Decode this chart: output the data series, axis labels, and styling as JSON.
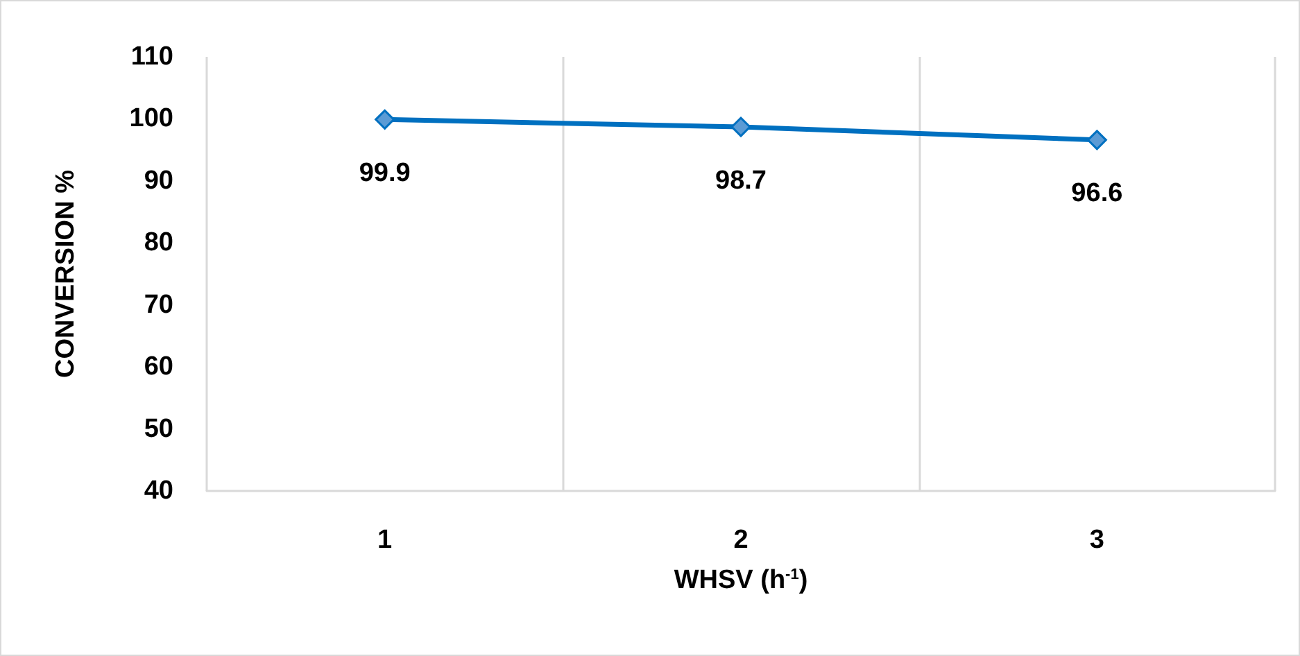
{
  "chart_data": {
    "type": "line",
    "xlabel": "WHSV (h$^{-1}$)",
    "ylabel": "CONVERSION %",
    "categories": [
      "1",
      "2",
      "3"
    ],
    "series": [
      {
        "color": "#0070c0",
        "values": [
          99.9,
          98.7,
          96.6
        ]
      }
    ],
    "ylim": [
      40,
      110
    ],
    "yticks": [
      40,
      50,
      60,
      70,
      80,
      90,
      100,
      110
    ],
    "grid": "x",
    "marker": "diamond",
    "line_style": "solid",
    "data_labels": true
  }
}
